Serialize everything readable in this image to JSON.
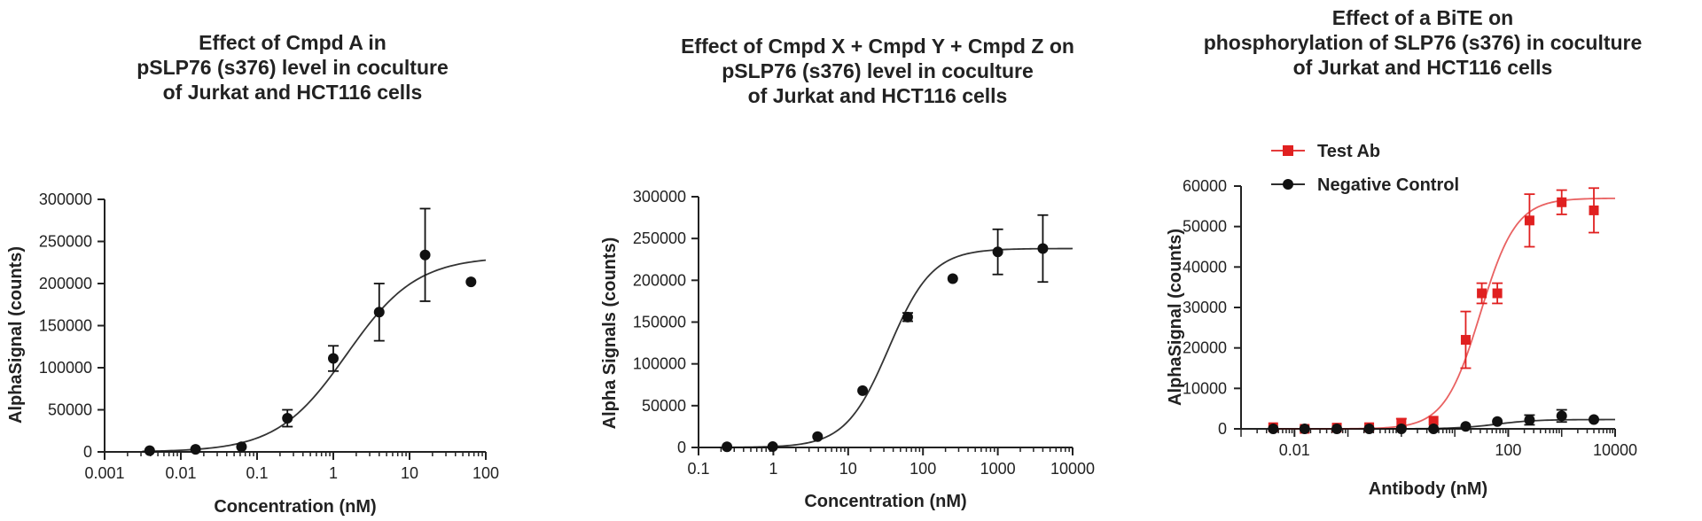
{
  "chart_data": [
    {
      "type": "scatter",
      "title": "Effect of Cmpd A in\npSLP76 (s376) level in coculture\nof  Jurkat and HCT116 cells",
      "xlabel": "Concentration (nM)",
      "ylabel": "AlphaSignal (counts)",
      "xscale": "log",
      "xlim": [
        0.001,
        100
      ],
      "ylim": [
        0,
        300000
      ],
      "xticks": [
        0.001,
        0.01,
        0.1,
        1,
        10,
        100
      ],
      "xtick_labels": [
        "0.001",
        "0.01",
        "0.1",
        "1",
        "10",
        "100"
      ],
      "yticks": [
        0,
        50000,
        100000,
        150000,
        200000,
        250000,
        300000
      ],
      "ytick_labels": [
        "0",
        "50000",
        "100000",
        "150000",
        "200000",
        "250000",
        "300000"
      ],
      "grid": false,
      "fit": {
        "model": "4PL",
        "bottom": 0,
        "top": 232000,
        "ec50": 1.5,
        "hill": 0.95
      },
      "series": [
        {
          "color": "#111111",
          "marker": "circle",
          "x": [
            0.0039,
            0.0156,
            0.0625,
            0.25,
            1,
            4,
            16,
            64
          ],
          "y": [
            1500,
            3000,
            6000,
            40000,
            111000,
            166000,
            234000,
            202000
          ],
          "err": [
            0,
            0,
            0,
            10000,
            15000,
            34000,
            55000,
            0
          ]
        }
      ]
    },
    {
      "type": "scatter",
      "title": "Effect of Cmpd X + Cmpd Y + Cmpd Z on\npSLP76 (s376) level in coculture\nof  Jurkat and HCT116 cells",
      "xlabel": "Concentration (nM)",
      "ylabel": "Alpha Signals  (counts)",
      "xscale": "log",
      "xlim": [
        0.1,
        10000
      ],
      "ylim": [
        0,
        300000
      ],
      "xticks": [
        0.1,
        1,
        10,
        100,
        1000,
        10000
      ],
      "xtick_labels": [
        "0.1",
        "1",
        "10",
        "100",
        "1000",
        "10000"
      ],
      "yticks": [
        0,
        50000,
        100000,
        150000,
        200000,
        250000,
        300000
      ],
      "ytick_labels": [
        "0",
        "50000",
        "100000",
        "150000",
        "200000",
        "250000",
        "300000"
      ],
      "grid": false,
      "fit": {
        "model": "4PL",
        "bottom": 0,
        "top": 238000,
        "ec50": 35,
        "hill": 1.5
      },
      "series": [
        {
          "color": "#111111",
          "marker": "circle",
          "x": [
            0.24,
            0.98,
            3.9,
            15.6,
            62.5,
            250,
            1000,
            4000
          ],
          "y": [
            800,
            1000,
            13000,
            68000,
            156000,
            202000,
            234000,
            238000
          ],
          "err": [
            0,
            0,
            0,
            0,
            5000,
            0,
            27000,
            40000
          ]
        }
      ]
    },
    {
      "type": "scatter",
      "title": "Effect of a BiTE on\nphosphorylation of SLP76 (s376)  in coculture\nof  Jurkat and HCT116 cells",
      "xlabel": "Antibody (nM)",
      "ylabel": "AlphaSignal (counts)",
      "xscale": "log",
      "xlim": [
        0.001,
        10000
      ],
      "ylim": [
        0,
        60000
      ],
      "xticks": [
        0.01,
        100,
        10000
      ],
      "xtick_labels": [
        "0.01",
        "100",
        "10000"
      ],
      "yticks": [
        0,
        10000,
        20000,
        30000,
        40000,
        50000,
        60000
      ],
      "ytick_labels": [
        "0",
        "10000",
        "20000",
        "30000",
        "40000",
        "50000",
        "60000"
      ],
      "grid": false,
      "legend_position": "top-left",
      "series": [
        {
          "name": "Test Ab",
          "color": "#e02020",
          "marker": "square",
          "fit": {
            "model": "4PL",
            "bottom": 0,
            "top": 57000,
            "ec50": 30,
            "hill": 1.3
          },
          "x": [
            0.004,
            0.0155,
            0.062,
            0.25,
            1,
            4,
            16,
            32,
            62.5,
            250,
            1000,
            4000
          ],
          "y": [
            400,
            0,
            300,
            400,
            1500,
            2000,
            22000,
            33500,
            33500,
            51500,
            56000,
            54000
          ],
          "err": [
            0,
            0,
            0,
            0,
            1000,
            0,
            7000,
            2500,
            2500,
            6500,
            3000,
            5500
          ]
        },
        {
          "name": "Negative Control",
          "color": "#111111",
          "marker": "circle",
          "fit": {
            "model": "4PL",
            "bottom": 0,
            "top": 2300,
            "ec50": 60,
            "hill": 1.2
          },
          "x": [
            0.004,
            0.0155,
            0.062,
            0.25,
            1,
            4,
            16,
            62.5,
            250,
            1000,
            4000
          ],
          "y": [
            0,
            0,
            0,
            0,
            0,
            0,
            600,
            1800,
            2200,
            3200,
            2300
          ],
          "err": [
            0,
            0,
            0,
            0,
            0,
            0,
            0,
            0,
            1200,
            1500,
            0
          ]
        }
      ]
    }
  ]
}
